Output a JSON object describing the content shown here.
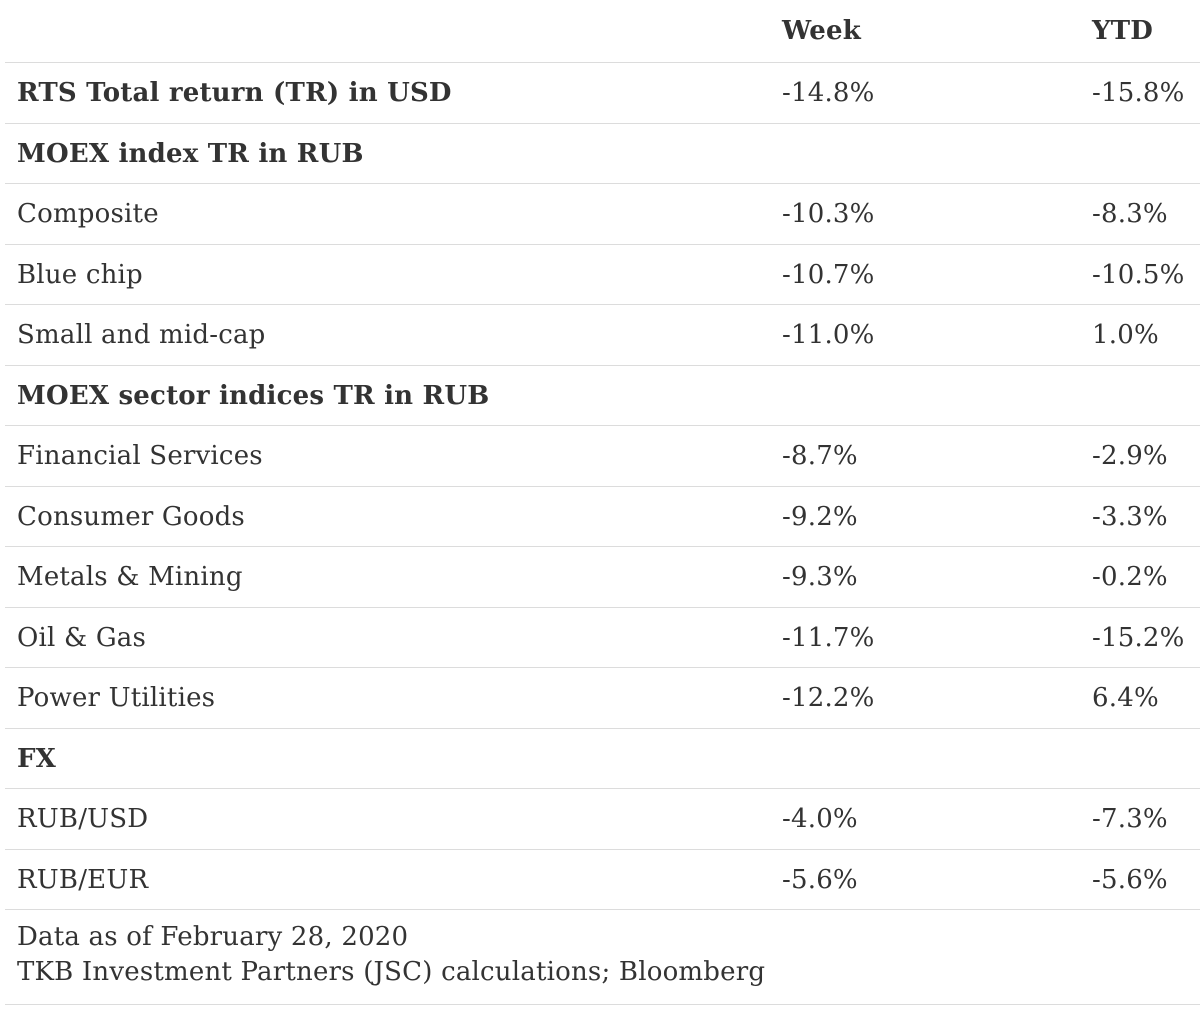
{
  "table": {
    "headers": {
      "label": "",
      "week": "Week",
      "ytd": "YTD"
    },
    "rows": [
      {
        "label": "RTS Total return (TR) in USD",
        "week": "-14.8%",
        "ytd": "-15.8%",
        "bold": true
      },
      {
        "label": "MOEX index TR in RUB",
        "week": "",
        "ytd": "",
        "bold": true
      },
      {
        "label": "Composite",
        "week": "-10.3%",
        "ytd": "-8.3%",
        "bold": false
      },
      {
        "label": "Blue chip",
        "week": "-10.7%",
        "ytd": "-10.5%",
        "bold": false
      },
      {
        "label": "Small and mid-cap",
        "week": "-11.0%",
        "ytd": "1.0%",
        "bold": false
      },
      {
        "label": "MOEX sector indices TR in RUB",
        "week": "",
        "ytd": "",
        "bold": true
      },
      {
        "label": "Financial Services",
        "week": "-8.7%",
        "ytd": "-2.9%",
        "bold": false
      },
      {
        "label": "Consumer Goods",
        "week": "-9.2%",
        "ytd": "-3.3%",
        "bold": false
      },
      {
        "label": "Metals & Mining",
        "week": "-9.3%",
        "ytd": "-0.2%",
        "bold": false
      },
      {
        "label": "Oil & Gas",
        "week": "-11.7%",
        "ytd": "-15.2%",
        "bold": false
      },
      {
        "label": "Power Utilities",
        "week": "-12.2%",
        "ytd": "6.4%",
        "bold": false
      },
      {
        "label": "FX",
        "week": "",
        "ytd": "",
        "bold": true
      },
      {
        "label": "RUB/USD",
        "week": "-4.0%",
        "ytd": "-7.3%",
        "bold": false
      },
      {
        "label": "RUB/EUR",
        "week": "-5.6%",
        "ytd": "-5.6%",
        "bold": false
      }
    ]
  },
  "footer": {
    "line1": "Data as of February 28, 2020",
    "line2": "TKB Investment Partners (JSC) calculations; Bloomberg"
  }
}
